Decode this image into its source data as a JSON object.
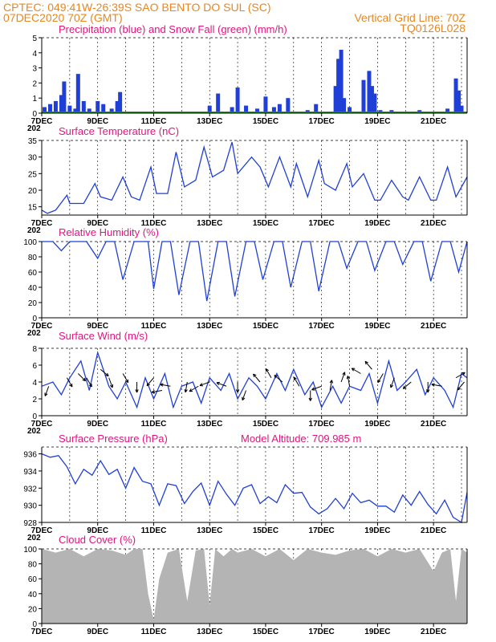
{
  "header": {
    "line1_left": "CPTEC:   049:41W-26:39S   SAO BENTO DO SUL (SC)",
    "line2_left": "07DEC2020 70Z (GMT)",
    "line2_right": "Vertical Grid Line: 70Z",
    "line3_right": "TQ0126L028"
  },
  "colors": {
    "header": "#e8871e",
    "title": "#e0157f",
    "line": "#1f3fd6",
    "snow": "#12a012",
    "cloud": "#b4b4b4",
    "wind_arrow": "#000000"
  },
  "x_axis": {
    "tick_labels": [
      "7DEC",
      "9DEC",
      "11DEC",
      "13DEC",
      "15DEC",
      "17DEC",
      "19DEC",
      "21DEC"
    ],
    "tick_days": [
      7,
      9,
      11,
      13,
      15,
      17,
      19,
      21
    ],
    "range_days": [
      7,
      22.2
    ],
    "stray_label": "202"
  },
  "chart_data": [
    {
      "id": "precip",
      "type": "bar",
      "title": "Precipitation (blue) and Snow Fall (green) (mm/h)",
      "ylim": [
        0,
        5
      ],
      "yticks": [
        0,
        1,
        2,
        3,
        4,
        5
      ],
      "series": [
        {
          "name": "Precipitation",
          "x": [
            7.1,
            7.3,
            7.5,
            7.7,
            7.8,
            8.0,
            8.2,
            8.3,
            8.5,
            8.7,
            9.0,
            9.2,
            9.5,
            9.7,
            9.8,
            13.0,
            13.3,
            13.8,
            14.0,
            14.3,
            14.7,
            15.0,
            15.3,
            15.5,
            15.8,
            16.5,
            16.8,
            17.5,
            17.6,
            17.7,
            17.8,
            18.0,
            18.5,
            18.7,
            18.8,
            18.9,
            19.1,
            19.5,
            20.0,
            20.5,
            21.5,
            21.8,
            21.9,
            22.0
          ],
          "values": [
            0.4,
            0.6,
            0.8,
            1.2,
            2.1,
            0.5,
            0.3,
            2.6,
            0.8,
            0.3,
            0.8,
            0.6,
            0.3,
            0.8,
            1.4,
            0.5,
            1.3,
            0.4,
            1.7,
            0.5,
            0.3,
            1.1,
            0.4,
            0.6,
            1.0,
            0.2,
            0.6,
            1.8,
            3.6,
            4.2,
            1.0,
            0.4,
            2.2,
            2.8,
            1.8,
            1.3,
            0.2,
            0.2,
            0.1,
            0.2,
            0.3,
            2.3,
            1.5,
            0.5
          ]
        },
        {
          "name": "Snow Fall",
          "x": [
            7.0,
            22.2
          ],
          "values": [
            0,
            0
          ]
        }
      ]
    },
    {
      "id": "temperature",
      "type": "line",
      "title": "Surface Temperature (nC)",
      "ylim": [
        12.5,
        35
      ],
      "yticks": [
        15,
        20,
        25,
        30,
        35
      ],
      "x": [
        7.0,
        7.2,
        7.5,
        7.9,
        8.0,
        8.5,
        8.9,
        9.1,
        9.5,
        9.9,
        10.2,
        10.5,
        10.9,
        11.1,
        11.5,
        11.8,
        12.1,
        12.5,
        12.8,
        13.1,
        13.5,
        13.8,
        14.0,
        14.5,
        14.8,
        15.1,
        15.5,
        15.9,
        16.1,
        16.5,
        16.9,
        17.1,
        17.5,
        17.9,
        18.1,
        18.5,
        18.9,
        19.1,
        19.5,
        19.9,
        20.1,
        20.5,
        20.9,
        21.1,
        21.5,
        21.8,
        22.2
      ],
      "values": [
        14,
        13,
        14,
        18.5,
        16,
        16,
        22,
        18,
        17,
        24,
        18,
        17,
        27,
        19,
        19,
        31.5,
        21,
        23,
        33,
        24,
        26,
        34.5,
        25,
        30,
        27,
        21,
        30,
        21,
        28,
        18,
        29,
        22,
        20,
        28,
        21,
        25,
        17,
        17,
        23,
        18,
        17,
        24,
        17,
        17,
        27,
        18,
        24
      ]
    },
    {
      "id": "humidity",
      "type": "line",
      "title": "Relative Humidity (%)",
      "ylim": [
        0,
        100
      ],
      "yticks": [
        0,
        20,
        40,
        60,
        80,
        100
      ],
      "x": [
        7.0,
        7.4,
        7.7,
        8.0,
        8.4,
        8.6,
        9.0,
        9.3,
        9.6,
        9.9,
        10.3,
        10.6,
        10.8,
        11.0,
        11.3,
        11.6,
        11.9,
        12.3,
        12.6,
        12.9,
        13.3,
        13.6,
        13.9,
        14.3,
        14.6,
        14.9,
        15.3,
        15.6,
        15.9,
        16.3,
        16.6,
        16.9,
        17.3,
        17.6,
        17.9,
        18.3,
        18.6,
        18.9,
        19.3,
        19.6,
        19.9,
        20.3,
        20.6,
        20.9,
        21.3,
        21.6,
        21.9,
        22.2
      ],
      "values": [
        100,
        100,
        88,
        100,
        100,
        100,
        78,
        100,
        100,
        50,
        100,
        100,
        100,
        38,
        100,
        100,
        30,
        100,
        100,
        22,
        100,
        100,
        28,
        100,
        100,
        50,
        100,
        100,
        40,
        100,
        100,
        35,
        100,
        100,
        65,
        100,
        100,
        62,
        100,
        100,
        70,
        100,
        100,
        48,
        100,
        100,
        60,
        100
      ]
    },
    {
      "id": "wind",
      "type": "line",
      "title": "Surface Wind (m/s)",
      "ylim": [
        0,
        8
      ],
      "yticks": [
        0,
        2,
        4,
        6,
        8
      ],
      "x": [
        7.0,
        7.4,
        7.7,
        8.0,
        8.4,
        8.7,
        9.0,
        9.4,
        9.7,
        10.0,
        10.4,
        10.7,
        11.0,
        11.4,
        11.7,
        12.0,
        12.4,
        12.7,
        13.0,
        13.4,
        13.7,
        14.0,
        14.4,
        14.7,
        15.0,
        15.4,
        15.7,
        16.0,
        16.4,
        16.7,
        17.0,
        17.4,
        17.7,
        18.0,
        18.4,
        18.7,
        19.0,
        19.4,
        19.7,
        20.0,
        20.4,
        20.7,
        21.0,
        21.4,
        21.7,
        22.0,
        22.2
      ],
      "values": [
        3.5,
        4.0,
        2.5,
        4.5,
        6.5,
        3.0,
        7.5,
        3.5,
        2.0,
        4.0,
        1.0,
        4.5,
        2.0,
        5.0,
        1.0,
        3.5,
        4.0,
        1.5,
        4.5,
        3.0,
        5.0,
        2.0,
        4.5,
        3.5,
        2.0,
        5.0,
        3.0,
        5.5,
        2.5,
        4.0,
        1.0,
        3.5,
        1.5,
        3.5,
        3.0,
        5.0,
        1.5,
        6.5,
        3.0,
        4.0,
        5.5,
        2.5,
        4.5,
        3.0,
        1.0,
        5.0,
        4.5
      ]
    },
    {
      "id": "pressure",
      "type": "line",
      "title": "Surface Pressure (hPa)",
      "annotation": "Model Altitude: 709.985  m",
      "ylim": [
        928,
        936.8
      ],
      "yticks": [
        928,
        930,
        932,
        934,
        936
      ],
      "x": [
        7.0,
        7.3,
        7.6,
        7.9,
        8.2,
        8.5,
        8.8,
        9.1,
        9.4,
        9.7,
        10.0,
        10.3,
        10.6,
        10.9,
        11.2,
        11.5,
        11.8,
        12.1,
        12.4,
        12.7,
        13.0,
        13.3,
        13.6,
        13.9,
        14.2,
        14.5,
        14.8,
        15.1,
        15.4,
        15.7,
        16.0,
        16.3,
        16.6,
        16.9,
        17.2,
        17.5,
        17.8,
        18.1,
        18.4,
        18.7,
        19.0,
        19.3,
        19.6,
        19.9,
        20.2,
        20.5,
        20.8,
        21.1,
        21.4,
        21.7,
        22.0,
        22.2
      ],
      "values": [
        936,
        935.6,
        935.8,
        934.5,
        932.5,
        934.2,
        933.5,
        935.2,
        933.6,
        934.2,
        932.0,
        934.4,
        932.8,
        932.5,
        930.0,
        932.5,
        932.3,
        930.2,
        931.6,
        932.6,
        930.0,
        932.8,
        931.3,
        930.0,
        932.0,
        932.4,
        930.2,
        931.0,
        930.3,
        932.4,
        931.4,
        931.5,
        929.8,
        929.0,
        929.6,
        930.8,
        929.6,
        931.4,
        930.3,
        930.6,
        929.9,
        929.9,
        929.2,
        931.2,
        930.0,
        931.6,
        930.1,
        929.0,
        930.6,
        928.6,
        928.0,
        931.5
      ]
    },
    {
      "id": "cloud",
      "type": "area",
      "title": "Cloud Cover (%)",
      "ylim": [
        0,
        100
      ],
      "yticks": [
        0,
        20,
        40,
        60,
        80,
        100
      ],
      "x": [
        7.0,
        7.5,
        8.0,
        8.5,
        9.0,
        9.5,
        10.0,
        10.3,
        10.6,
        10.8,
        11.0,
        11.2,
        11.5,
        11.9,
        12.2,
        12.5,
        12.8,
        13.0,
        13.2,
        13.5,
        13.8,
        14.0,
        14.5,
        15.0,
        15.5,
        16.0,
        16.5,
        17.0,
        17.5,
        18.0,
        18.5,
        19.0,
        19.5,
        20.0,
        20.5,
        21.0,
        21.3,
        21.6,
        21.8,
        22.0,
        22.2
      ],
      "values": [
        100,
        95,
        100,
        90,
        100,
        98,
        92,
        100,
        100,
        40,
        5,
        60,
        95,
        100,
        30,
        98,
        100,
        25,
        100,
        90,
        100,
        95,
        100,
        90,
        100,
        85,
        100,
        95,
        92,
        98,
        100,
        90,
        100,
        95,
        100,
        70,
        95,
        100,
        30,
        100,
        95
      ]
    }
  ],
  "wind_arrows": [
    {
      "day": 7.25,
      "speed": 3.5,
      "dir": 200
    },
    {
      "day": 7.9,
      "speed": 4.5,
      "dir": 150
    },
    {
      "day": 8.3,
      "speed": 5.0,
      "dir": 135
    },
    {
      "day": 8.6,
      "speed": 4.5,
      "dir": 150
    },
    {
      "day": 9.1,
      "speed": 5.5,
      "dir": 130
    },
    {
      "day": 9.4,
      "speed": 4.5,
      "dir": 160
    },
    {
      "day": 9.9,
      "speed": 5.0,
      "dir": 150
    },
    {
      "day": 10.4,
      "speed": 4.0,
      "dir": 180
    },
    {
      "day": 11.0,
      "speed": 4.5,
      "dir": 220
    },
    {
      "day": 11.3,
      "speed": 3.0,
      "dir": 260
    },
    {
      "day": 11.6,
      "speed": 3.5,
      "dir": 280
    },
    {
      "day": 12.2,
      "speed": 4.0,
      "dir": 190
    },
    {
      "day": 12.6,
      "speed": 3.5,
      "dir": 240
    },
    {
      "day": 13.0,
      "speed": 4.0,
      "dir": 250
    },
    {
      "day": 13.6,
      "speed": 3.5,
      "dir": 290
    },
    {
      "day": 14.0,
      "speed": 4.0,
      "dir": 180
    },
    {
      "day": 14.3,
      "speed": 3.0,
      "dir": 200
    },
    {
      "day": 14.8,
      "speed": 4.0,
      "dir": 320
    },
    {
      "day": 15.2,
      "speed": 4.5,
      "dir": 330
    },
    {
      "day": 15.6,
      "speed": 4.0,
      "dir": 310
    },
    {
      "day": 16.2,
      "speed": 3.5,
      "dir": 330
    },
    {
      "day": 16.6,
      "speed": 3.0,
      "dir": 180
    },
    {
      "day": 17.0,
      "speed": 3.5,
      "dir": 250
    },
    {
      "day": 17.3,
      "speed": 3.0,
      "dir": 10
    },
    {
      "day": 17.7,
      "speed": 4.0,
      "dir": 20
    },
    {
      "day": 18.0,
      "speed": 3.5,
      "dir": 350
    },
    {
      "day": 18.4,
      "speed": 5.0,
      "dir": 300
    },
    {
      "day": 18.8,
      "speed": 5.5,
      "dir": 320
    },
    {
      "day": 19.2,
      "speed": 5.0,
      "dir": 210
    },
    {
      "day": 19.6,
      "speed": 4.5,
      "dir": 200
    },
    {
      "day": 20.2,
      "speed": 4.0,
      "dir": 230
    },
    {
      "day": 20.8,
      "speed": 4.0,
      "dir": 180
    },
    {
      "day": 21.3,
      "speed": 3.5,
      "dir": 280
    },
    {
      "day": 21.8,
      "speed": 4.5,
      "dir": 60
    },
    {
      "day": 22.1,
      "speed": 4.0,
      "dir": 220
    }
  ]
}
